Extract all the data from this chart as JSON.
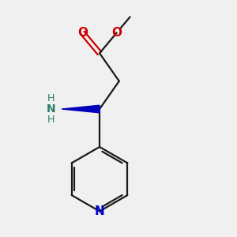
{
  "bg_color": "#f0f0f0",
  "bond_color": "#1a1a1a",
  "nitrogen_color": "#0000cc",
  "oxygen_color": "#cc0000",
  "wedge_color": "#0000bb",
  "lw": 1.6,
  "figsize": [
    3.0,
    3.0
  ],
  "dpi": 100,
  "xlim": [
    0.5,
    5.5
  ],
  "ylim": [
    0.3,
    6.5
  ]
}
